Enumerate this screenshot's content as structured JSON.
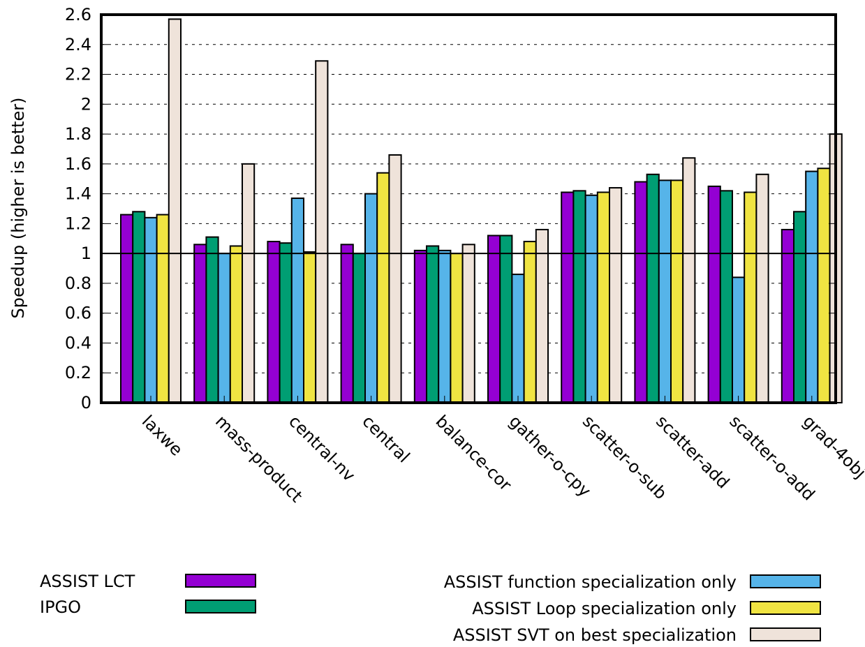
{
  "chart_data": {
    "type": "bar",
    "ylabel": "Speedup (higher is better)",
    "xlabel": "",
    "ylim": [
      0,
      2.6
    ],
    "yticks": [
      "0",
      "0.2",
      "0.4",
      "0.6",
      "0.8",
      "1",
      "1.2",
      "1.4",
      "1.6",
      "1.8",
      "2",
      "2.2",
      "2.4",
      "2.6"
    ],
    "grid": "horizontal dashed",
    "reference_line": 1,
    "categories": [
      "laxwe",
      "mass-product",
      "central-nv",
      "central",
      "balance-cor",
      "gather-o-cpy",
      "scatter-o-sub",
      "scatter-add",
      "scatter-o-add",
      "grad-4obj"
    ],
    "legend_position": "bottom",
    "series": [
      {
        "name": "ASSIST LCT",
        "color": "#9400d3",
        "values": [
          1.26,
          1.06,
          1.08,
          1.06,
          1.02,
          1.12,
          1.41,
          1.48,
          1.45,
          1.16
        ]
      },
      {
        "name": "IPGO",
        "color": "#009e73",
        "values": [
          1.28,
          1.11,
          1.07,
          1.0,
          1.05,
          1.12,
          1.42,
          1.53,
          1.42,
          1.28
        ]
      },
      {
        "name": "ASSIST function specialization only",
        "color": "#56b4e9",
        "values": [
          1.24,
          1.0,
          1.37,
          1.4,
          1.02,
          0.86,
          1.39,
          1.49,
          0.84,
          1.55
        ]
      },
      {
        "name": "ASSIST Loop specialization only",
        "color": "#f0e442",
        "values": [
          1.26,
          1.05,
          1.01,
          1.54,
          1.0,
          1.08,
          1.41,
          1.49,
          1.41,
          1.57
        ]
      },
      {
        "name": "ASSIST SVT on best specialization",
        "color": "#efe3da",
        "values": [
          2.57,
          1.6,
          2.29,
          1.66,
          1.06,
          1.16,
          1.44,
          1.64,
          1.53,
          1.8
        ]
      }
    ]
  }
}
